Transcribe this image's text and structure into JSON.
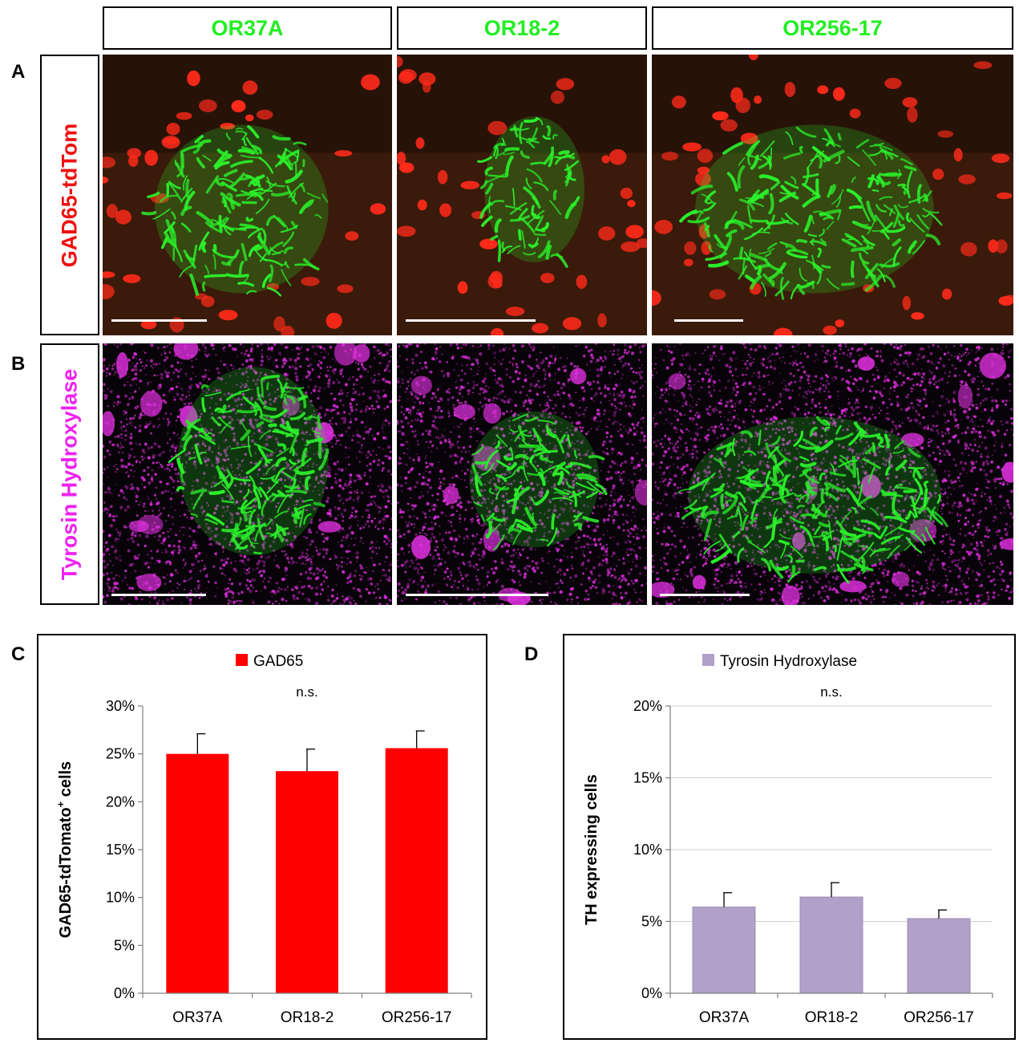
{
  "columns": [
    {
      "label": "OR37A",
      "color": "#22ee22"
    },
    {
      "label": "OR18-2",
      "color": "#22ee22"
    },
    {
      "label": "OR256-17",
      "color": "#22ee22"
    }
  ],
  "rows": [
    {
      "letter": "A",
      "label": "GAD65-tdTom",
      "color": "#ee1111"
    },
    {
      "letter": "B",
      "label": "Tyrosin Hydroxylase",
      "color": "#ee22ee"
    }
  ],
  "colors": {
    "green_signal": "#2af02a",
    "red_signal": "#ff2a1a",
    "magenta_signal": "#e030e0",
    "gad65_bar": "#ff0000",
    "th_bar": "#b1a0c7"
  },
  "chart_data": [
    {
      "type": "bar",
      "panel": "C",
      "categories": [
        "OR37A",
        "OR18-2",
        "OR256-17"
      ],
      "series": [
        {
          "name": "GAD65",
          "values": [
            25.0,
            23.2,
            25.6
          ],
          "errors": [
            2.1,
            2.3,
            1.8
          ],
          "color": "#ff0000"
        }
      ],
      "ylabel": "GAD65-tdTomato",
      "ylabel_sup": "+",
      "ylabel_suffix": " cells",
      "ylim": [
        0,
        30
      ],
      "yticks": [
        "0%",
        "5%",
        "10%",
        "15%",
        "20%",
        "25%",
        "30%"
      ],
      "significance": "n.s.",
      "grid": false,
      "legend": "top-center"
    },
    {
      "type": "bar",
      "panel": "D",
      "categories": [
        "OR37A",
        "OR18-2",
        "OR256-17"
      ],
      "series": [
        {
          "name": "Tyrosin Hydroxylase",
          "values": [
            6.0,
            6.7,
            5.2
          ],
          "errors": [
            1.0,
            1.0,
            0.6
          ],
          "color": "#b1a0c7"
        }
      ],
      "ylabel": "TH expressing cells",
      "ylim": [
        0,
        20
      ],
      "yticks": [
        "0%",
        "5%",
        "10%",
        "15%",
        "20%"
      ],
      "significance": "n.s.",
      "grid": true,
      "legend": "top-center"
    }
  ]
}
